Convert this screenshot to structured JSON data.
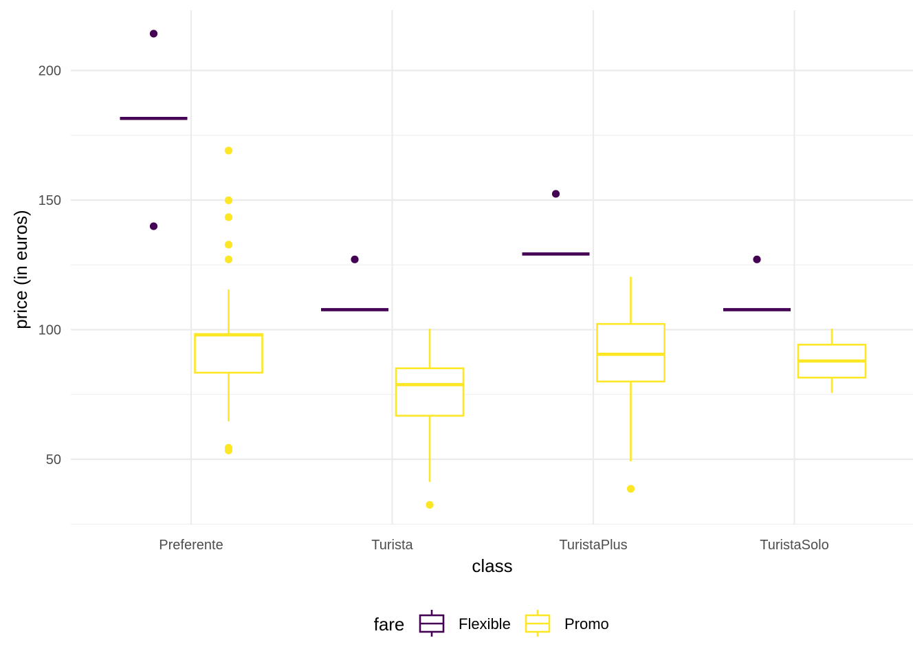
{
  "chart_data": {
    "type": "boxplot",
    "title": "",
    "xlabel": "class",
    "ylabel": "price (in euros)",
    "ylim": [
      25,
      222
    ],
    "y_ticks": [
      50,
      100,
      150,
      200
    ],
    "categories": [
      "Preferente",
      "Turista",
      "TuristaPlus",
      "TuristaSolo"
    ],
    "grid": true,
    "legend": {
      "title": "fare",
      "position": "bottom"
    },
    "series": [
      {
        "name": "Flexible",
        "color": "#440154",
        "boxes": [
          {
            "category": "Preferente",
            "min": 181.5,
            "q1": 181.5,
            "median": 181.5,
            "q3": 181.5,
            "max": 181.5,
            "outliers": [
              214.2,
              139.9
            ]
          },
          {
            "category": "Turista",
            "min": 107.7,
            "q1": 107.7,
            "median": 107.7,
            "q3": 107.7,
            "max": 107.7,
            "outliers": [
              127.1
            ]
          },
          {
            "category": "TuristaPlus",
            "min": 129.2,
            "q1": 129.2,
            "median": 129.2,
            "q3": 129.2,
            "max": 129.2,
            "outliers": [
              152.4
            ]
          },
          {
            "category": "TuristaSolo",
            "min": 107.7,
            "q1": 107.7,
            "median": 107.7,
            "q3": 107.7,
            "max": 107.7,
            "outliers": [
              127.1
            ]
          }
        ]
      },
      {
        "name": "Promo",
        "color": "#FDE725",
        "boxes": [
          {
            "category": "Preferente",
            "min": 64.6,
            "q1": 83.4,
            "median": 98.0,
            "q3": 98.3,
            "max": 115.5,
            "outliers": [
              169.1,
              149.9,
              143.4,
              132.8,
              127.1,
              54.4,
              53.4
            ]
          },
          {
            "category": "Turista",
            "min": 41.2,
            "q1": 66.8,
            "median": 78.8,
            "q3": 85.1,
            "max": 100.4,
            "outliers": [
              32.4
            ]
          },
          {
            "category": "TuristaPlus",
            "min": 49.2,
            "q1": 80.0,
            "median": 90.5,
            "q3": 102.2,
            "max": 120.4,
            "outliers": [
              38.6
            ]
          },
          {
            "category": "TuristaSolo",
            "min": 75.6,
            "q1": 81.5,
            "median": 87.9,
            "q3": 94.2,
            "max": 100.4,
            "outliers": []
          }
        ]
      }
    ]
  }
}
